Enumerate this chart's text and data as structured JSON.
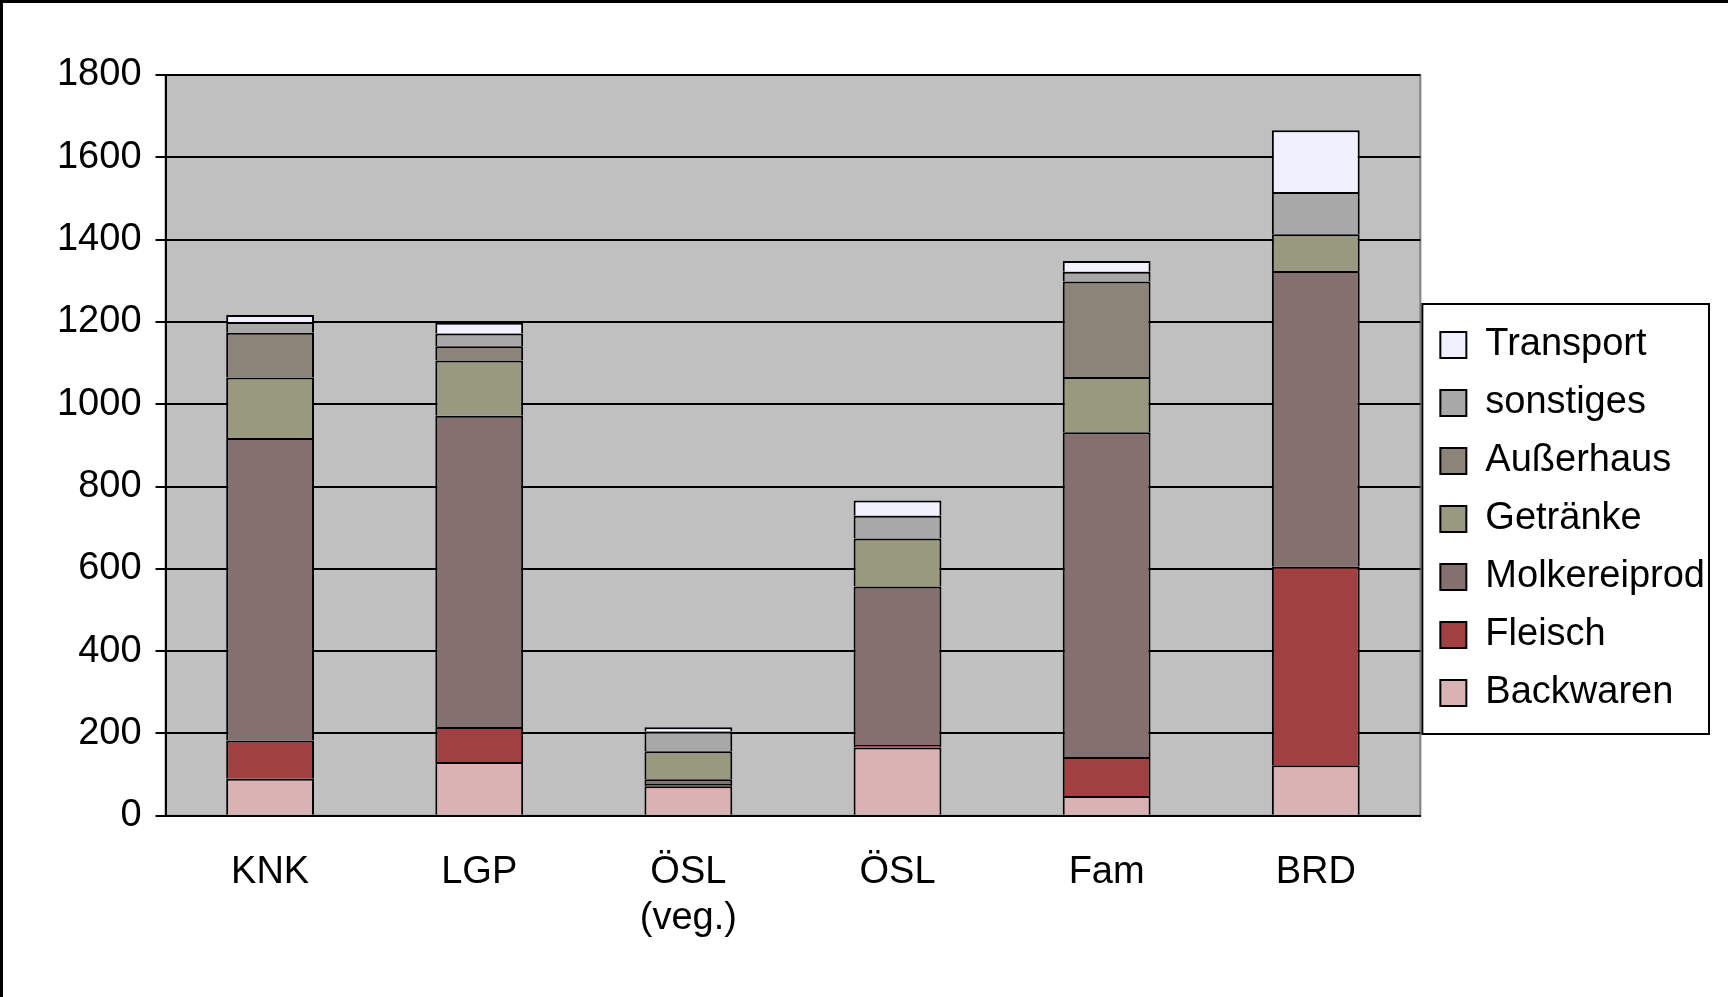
{
  "chart_data": {
    "type": "bar",
    "stacked": true,
    "categories": [
      "KNK",
      "LGP",
      "ÖSL (veg.)",
      "ÖSL",
      "Fam",
      "BRD"
    ],
    "series": [
      {
        "name": "Backwaren",
        "color": "#d9b3b3",
        "values": [
          90,
          131,
          72,
          166,
          48,
          123
        ]
      },
      {
        "name": "Fleisch",
        "color": "#a04040",
        "values": [
          93,
          85,
          5,
          6,
          95,
          483
        ]
      },
      {
        "name": "Molkereiprod",
        "color": "#857070",
        "values": [
          735,
          756,
          12,
          385,
          789,
          718
        ]
      },
      {
        "name": "Getränke",
        "color": "#999980",
        "values": [
          147,
          134,
          68,
          117,
          134,
          89
        ]
      },
      {
        "name": "Außerhaus",
        "color": "#8c8478",
        "values": [
          109,
          35,
          0,
          0,
          232,
          0
        ]
      },
      {
        "name": "sonstiges",
        "color": "#a8a8a8",
        "values": [
          26,
          31,
          48,
          55,
          24,
          103
        ]
      },
      {
        "name": "Transport",
        "color": "#f0f0ff",
        "values": [
          17,
          26,
          10,
          37,
          26,
          150
        ]
      }
    ],
    "ylim": [
      0,
      1800
    ],
    "yticks": [
      0,
      200,
      400,
      600,
      800,
      1000,
      1200,
      1400,
      1600,
      1800
    ],
    "grid": "y",
    "legend": "right"
  }
}
